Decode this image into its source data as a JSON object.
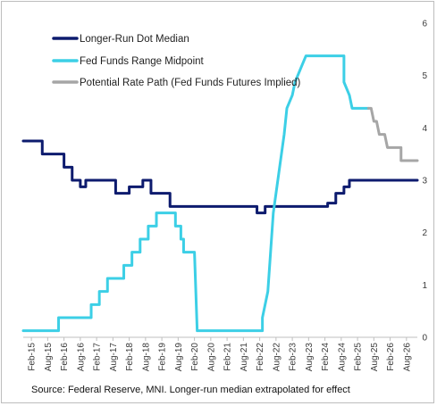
{
  "chart_data": {
    "type": "line",
    "source": "Source: Federal Reserve, MNI. Longer-run median extrapolated for effect",
    "x_ticks": [
      "Feb-15",
      "Aug-15",
      "Feb-16",
      "Aug-16",
      "Feb-17",
      "Aug-17",
      "Feb-18",
      "Aug-18",
      "Feb-19",
      "Aug-19",
      "Feb-20",
      "Aug-20",
      "Feb-21",
      "Aug-21",
      "Feb-22",
      "Aug-22",
      "Feb-23",
      "Aug-23",
      "Feb-24",
      "Aug-24",
      "Feb-25",
      "Aug-25",
      "Feb-26",
      "Aug-26"
    ],
    "y_ticks": [
      "0",
      "1",
      "2",
      "3",
      "4",
      "5",
      "6"
    ],
    "ylim": [
      0,
      6
    ],
    "y_axis_side": "right",
    "legend_placement": "top-left",
    "series": [
      {
        "name": "Longer-Run Dot Median",
        "color": "#0d1b6e",
        "points": [
          [
            "2014-11",
            3.75
          ],
          [
            "2015-06",
            3.75
          ],
          [
            "2015-06",
            3.5
          ],
          [
            "2016-02",
            3.5
          ],
          [
            "2016-02",
            3.25
          ],
          [
            "2016-05",
            3.25
          ],
          [
            "2016-05",
            3.0
          ],
          [
            "2016-08",
            3.0
          ],
          [
            "2016-08",
            2.875
          ],
          [
            "2016-10",
            2.875
          ],
          [
            "2016-10",
            3.0
          ],
          [
            "2017-09",
            3.0
          ],
          [
            "2017-09",
            2.75
          ],
          [
            "2018-02",
            2.75
          ],
          [
            "2018-02",
            2.875
          ],
          [
            "2018-07",
            2.875
          ],
          [
            "2018-07",
            3.0
          ],
          [
            "2018-10",
            3.0
          ],
          [
            "2018-10",
            2.75
          ],
          [
            "2019-05",
            2.75
          ],
          [
            "2019-05",
            2.5
          ],
          [
            "2022-01",
            2.5
          ],
          [
            "2022-01",
            2.375
          ],
          [
            "2022-04",
            2.375
          ],
          [
            "2022-04",
            2.5
          ],
          [
            "2024-03",
            2.5
          ],
          [
            "2024-03",
            2.5625
          ],
          [
            "2024-06",
            2.5625
          ],
          [
            "2024-06",
            2.75
          ],
          [
            "2024-09",
            2.75
          ],
          [
            "2024-09",
            2.875
          ],
          [
            "2024-11",
            2.875
          ],
          [
            "2024-11",
            3.0
          ],
          [
            "2026-12",
            3.0
          ]
        ]
      },
      {
        "name": "Fed Funds Range Midpoint",
        "color": "#3ccfe6",
        "points": [
          [
            "2014-11",
            0.125
          ],
          [
            "2015-12",
            0.125
          ],
          [
            "2015-12",
            0.375
          ],
          [
            "2016-12",
            0.375
          ],
          [
            "2016-12",
            0.625
          ],
          [
            "2017-03",
            0.625
          ],
          [
            "2017-03",
            0.875
          ],
          [
            "2017-06",
            0.875
          ],
          [
            "2017-06",
            1.125
          ],
          [
            "2017-12",
            1.125
          ],
          [
            "2017-12",
            1.375
          ],
          [
            "2018-03",
            1.375
          ],
          [
            "2018-03",
            1.625
          ],
          [
            "2018-06",
            1.625
          ],
          [
            "2018-06",
            1.875
          ],
          [
            "2018-09",
            1.875
          ],
          [
            "2018-09",
            2.125
          ],
          [
            "2018-12",
            2.125
          ],
          [
            "2018-12",
            2.375
          ],
          [
            "2019-07",
            2.375
          ],
          [
            "2019-07",
            2.125
          ],
          [
            "2019-09",
            2.125
          ],
          [
            "2019-09",
            1.875
          ],
          [
            "2019-10",
            1.875
          ],
          [
            "2019-10",
            1.625
          ],
          [
            "2020-02",
            1.625
          ],
          [
            "2020-03",
            0.125
          ],
          [
            "2022-03",
            0.125
          ],
          [
            "2022-03",
            0.375
          ],
          [
            "2022-05",
            0.875
          ],
          [
            "2022-06",
            1.625
          ],
          [
            "2022-07",
            2.375
          ],
          [
            "2022-09",
            3.125
          ],
          [
            "2022-11",
            3.875
          ],
          [
            "2022-12",
            4.375
          ],
          [
            "2023-02",
            4.625
          ],
          [
            "2023-03",
            4.875
          ],
          [
            "2023-05",
            5.125
          ],
          [
            "2023-07",
            5.375
          ],
          [
            "2024-09",
            5.375
          ],
          [
            "2024-09",
            4.875
          ],
          [
            "2024-11",
            4.625
          ],
          [
            "2024-12",
            4.375
          ],
          [
            "2025-06",
            4.375
          ]
        ]
      },
      {
        "name": "Potential Rate Path (Fed Funds Futures Implied)",
        "color": "#a6a6a6",
        "points": [
          [
            "2025-06",
            4.375
          ],
          [
            "2025-07",
            4.375
          ],
          [
            "2025-08",
            4.125
          ],
          [
            "2025-09",
            4.125
          ],
          [
            "2025-10",
            3.875
          ],
          [
            "2025-12",
            3.875
          ],
          [
            "2026-01",
            3.625
          ],
          [
            "2026-06",
            3.625
          ],
          [
            "2026-06",
            3.375
          ],
          [
            "2026-12",
            3.375
          ]
        ]
      }
    ]
  }
}
